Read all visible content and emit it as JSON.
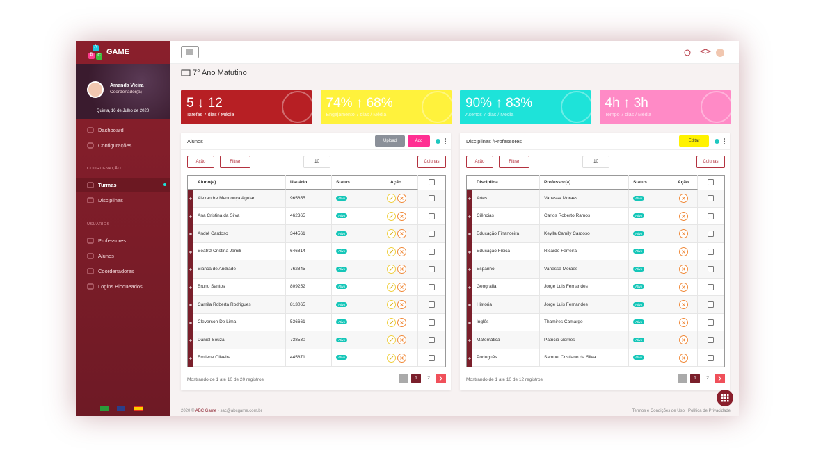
{
  "brand": {
    "logo": [
      "A",
      "B",
      "C"
    ],
    "name": "GAME"
  },
  "user": {
    "name": "Amanda Vieira",
    "role": "Coordenador(a)",
    "date": "Quinta, 16 de Julho de 2020"
  },
  "nav": [
    "Dashboard",
    "Configurações"
  ],
  "sections": [
    {
      "title": "COORDENAÇÃO",
      "items": [
        "Turmas",
        "Disciplinas"
      ]
    },
    {
      "title": "USUÁRIOS",
      "items": [
        "Professores",
        "Alunos",
        "Coordenadores",
        "Logins Bloqueados"
      ]
    }
  ],
  "page_title": "7° Ano Matutino",
  "stats": [
    {
      "value": "5 ↓ 12",
      "label": "Tarefas 7 dias / Média",
      "color": "#b71f24"
    },
    {
      "value": "74% ↑ 68%",
      "label": "Engajamento 7 dias / Média",
      "color": "#fff23c"
    },
    {
      "value": "90% ↑ 83%",
      "label": "Acertos 7 dias / Média",
      "color": "#1ee3d9"
    },
    {
      "value": "4h ↑ 3h",
      "label": "Tempo 7 dias / Média",
      "color": "#ff8ac6"
    }
  ],
  "tables": [
    {
      "title": "Alunos",
      "buttons": [
        {
          "label": "Upload",
          "color": "#8b9099"
        },
        {
          "label": "Add",
          "color": "#ff2f92"
        }
      ],
      "action": "Ação",
      "filter": "Filtrar",
      "page_size": "10",
      "columns_btn": "Colunas",
      "headers": [
        "Aluno(a)",
        "Usuário",
        "Status",
        "Ação"
      ],
      "rows": [
        [
          "Alexandre Mendonça Aguiar",
          "965655",
          "Ativo"
        ],
        [
          "Ana Cristina da Silva",
          "462365",
          "Ativo"
        ],
        [
          "André Cardoso",
          "344561",
          "Ativo"
        ],
        [
          "Beatriz Cristina Jamili",
          "646814",
          "Ativo"
        ],
        [
          "Bianca de Andrade",
          "762845",
          "Ativo"
        ],
        [
          "Bruno Santos",
          "809252",
          "Ativo"
        ],
        [
          "Camila Roberta Rodrigues",
          "813065",
          "Ativo"
        ],
        [
          "Cleverson De Lima",
          "536661",
          "Ativo"
        ],
        [
          "Daniel Souza",
          "738530",
          "Ativo"
        ],
        [
          "Emilene Oliveira",
          "445871",
          "Ativo"
        ]
      ],
      "info": "Mostrando de 1 até 10 de 20 registros",
      "pages": [
        "1",
        "2"
      ]
    },
    {
      "title": "Disciplinas /Professores",
      "buttons": [
        {
          "label": "Editar",
          "color": "#fff200"
        }
      ],
      "action": "Ação",
      "filter": "Filtrar",
      "page_size": "10",
      "columns_btn": "Colunas",
      "headers": [
        "Disciplina",
        "Professor(a)",
        "Status",
        "Ação"
      ],
      "rows": [
        [
          "Artes",
          "Vanessa Moraes",
          "Ativo"
        ],
        [
          "Ciências",
          "Carlos Roberto Ramos",
          "Ativo"
        ],
        [
          "Educação Financeira",
          "Keylla Camily Cardoso",
          "Ativo"
        ],
        [
          "Educação Física",
          "Ricardo Ferreira",
          "Ativo"
        ],
        [
          "Espanhol",
          "Vanessa Moraes",
          "Ativo"
        ],
        [
          "Geografia",
          "Jorge Luis Fernandes",
          "Ativo"
        ],
        [
          "História",
          "Jorge Luis Fernandes",
          "Ativo"
        ],
        [
          "Inglês",
          "Thamires Camargo",
          "Ativo"
        ],
        [
          "Matemática",
          "Patricia Gomes",
          "Ativo"
        ],
        [
          "Português",
          "Samuel Cristiano da Silva",
          "Ativo"
        ]
      ],
      "info": "Mostrando de 1 até 10 de 12 registros",
      "pages": [
        "1",
        "2"
      ]
    }
  ],
  "footer": {
    "year": "2020 ©",
    "link": "ABC Game",
    "email": "- sac@abcgame.com.br",
    "terms": "Termos e Condições de Uso",
    "privacy": "Política de Privacidade"
  }
}
